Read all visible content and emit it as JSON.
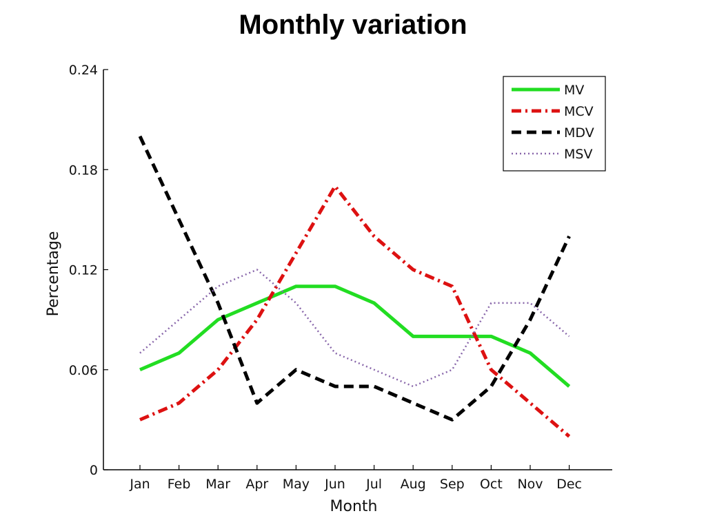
{
  "chart_data": {
    "type": "line",
    "title": "Monthly variation",
    "xlabel": "Month",
    "ylabel": "Percentage",
    "categories": [
      "Jan",
      "Feb",
      "Mar",
      "Apr",
      "May",
      "Jun",
      "Jul",
      "Aug",
      "Sep",
      "Oct",
      "Nov",
      "Dec"
    ],
    "ylim": [
      0,
      0.24
    ],
    "yticks": [
      "0",
      "0.06",
      "0.12",
      "0.18",
      "0.24"
    ],
    "grid": false,
    "legend_position": "top-right",
    "series": [
      {
        "name": "MV",
        "color": "#22dd22",
        "style": "solid",
        "values": [
          0.06,
          0.07,
          0.09,
          0.1,
          0.11,
          0.11,
          0.1,
          0.08,
          0.08,
          0.08,
          0.07,
          0.05
        ]
      },
      {
        "name": "MCV",
        "color": "#dd1111",
        "style": "dashdot",
        "values": [
          0.03,
          0.04,
          0.06,
          0.09,
          0.13,
          0.17,
          0.14,
          0.12,
          0.11,
          0.06,
          0.04,
          0.02
        ]
      },
      {
        "name": "MDV",
        "color": "#000000",
        "style": "dashed",
        "values": [
          0.2,
          0.15,
          0.1,
          0.04,
          0.06,
          0.05,
          0.05,
          0.04,
          0.03,
          0.05,
          0.09,
          0.14
        ]
      },
      {
        "name": "MSV",
        "color": "#8866aa",
        "style": "dotted",
        "values": [
          0.07,
          0.09,
          0.11,
          0.12,
          0.1,
          0.07,
          0.06,
          0.05,
          0.06,
          0.1,
          0.1,
          0.08
        ]
      }
    ]
  }
}
